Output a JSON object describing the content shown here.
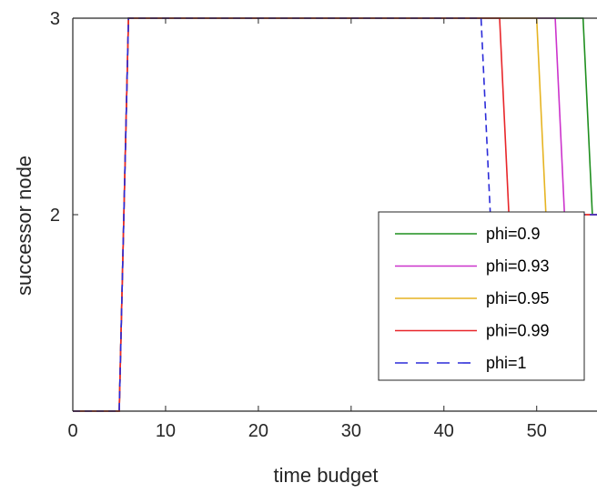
{
  "chart_data": {
    "type": "line",
    "title": "",
    "xlabel": "time budget",
    "ylabel": "successor node",
    "xlim": [
      0,
      56.5
    ],
    "ylim": [
      1,
      3
    ],
    "x_ticks": [
      0,
      10,
      20,
      30,
      40,
      50
    ],
    "x_tick_labels": [
      "0",
      "10",
      "20",
      "30",
      "40",
      "50"
    ],
    "y_ticks": [
      2,
      3
    ],
    "y_tick_labels": [
      "2",
      "3"
    ],
    "grid": false,
    "legend_position": "lower-right",
    "series": [
      {
        "name": "phi=0.9",
        "color": "#1f8f1f",
        "style": "solid",
        "x": [
          0,
          5,
          6,
          55,
          56,
          56.5
        ],
        "y": [
          1,
          1,
          3,
          3,
          2,
          2
        ]
      },
      {
        "name": "phi=0.93",
        "color": "#cc33cc",
        "style": "solid",
        "x": [
          0,
          5,
          6,
          52,
          53,
          56.5
        ],
        "y": [
          1,
          1,
          3,
          3,
          2,
          2
        ]
      },
      {
        "name": "phi=0.95",
        "color": "#e6b422",
        "style": "solid",
        "x": [
          0,
          5,
          6,
          50,
          51,
          56.5
        ],
        "y": [
          1,
          1,
          3,
          3,
          2,
          2
        ]
      },
      {
        "name": "phi=0.99",
        "color": "#e8262a",
        "style": "solid",
        "x": [
          0,
          5,
          6,
          46,
          47,
          56.5
        ],
        "y": [
          1,
          1,
          3,
          3,
          2,
          2
        ]
      },
      {
        "name": "phi=1",
        "color": "#2b2bd9",
        "style": "dashed",
        "x": [
          0,
          5,
          6,
          44,
          45,
          56.5
        ],
        "y": [
          1,
          1,
          3,
          3,
          2,
          2
        ]
      }
    ]
  }
}
